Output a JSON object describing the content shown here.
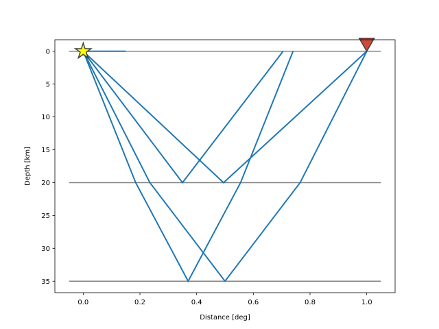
{
  "chart_data": {
    "type": "line",
    "xlabel": "Distance [deg]",
    "ylabel": "Depth [km]",
    "xlim": [
      -0.1,
      1.1
    ],
    "ylim": [
      36.75,
      -1.75
    ],
    "y_inverted": true,
    "xticks": [
      "0.0",
      "0.2",
      "0.4",
      "0.6",
      "0.8",
      "1.0"
    ],
    "yticks": [
      "0",
      "5",
      "10",
      "15",
      "20",
      "25",
      "30",
      "35"
    ],
    "xtick_values": [
      0.0,
      0.2,
      0.4,
      0.6,
      0.8,
      1.0
    ],
    "ytick_values": [
      0,
      5,
      10,
      15,
      20,
      25,
      30,
      35
    ],
    "grid": false,
    "layer_boundaries": {
      "color": "#808080",
      "x_range": [
        -0.05,
        1.05
      ],
      "depths": [
        0,
        20,
        35
      ]
    },
    "ray_color": "#1f77b4",
    "rays": [
      {
        "x": [
          0.0,
          0.15
        ],
        "y": [
          0,
          0
        ]
      },
      {
        "x": [
          0.0,
          0.35,
          0.705
        ],
        "y": [
          0,
          20,
          0
        ]
      },
      {
        "x": [
          0.0,
          0.495,
          1.0
        ],
        "y": [
          0,
          20,
          0
        ]
      },
      {
        "x": [
          0.0,
          0.185,
          0.37,
          0.555,
          0.74
        ],
        "y": [
          0,
          20,
          35,
          20,
          0
        ]
      },
      {
        "x": [
          0.0,
          0.235,
          0.5,
          0.765,
          1.0
        ],
        "y": [
          0,
          20,
          35,
          20,
          0
        ]
      }
    ],
    "source": {
      "x": 0.0,
      "y": 0,
      "marker": "star",
      "color": "#ffff00"
    },
    "receiver": {
      "x": 1.0,
      "y": 0,
      "marker": "triangle-down",
      "color": "#d04a3a"
    }
  }
}
